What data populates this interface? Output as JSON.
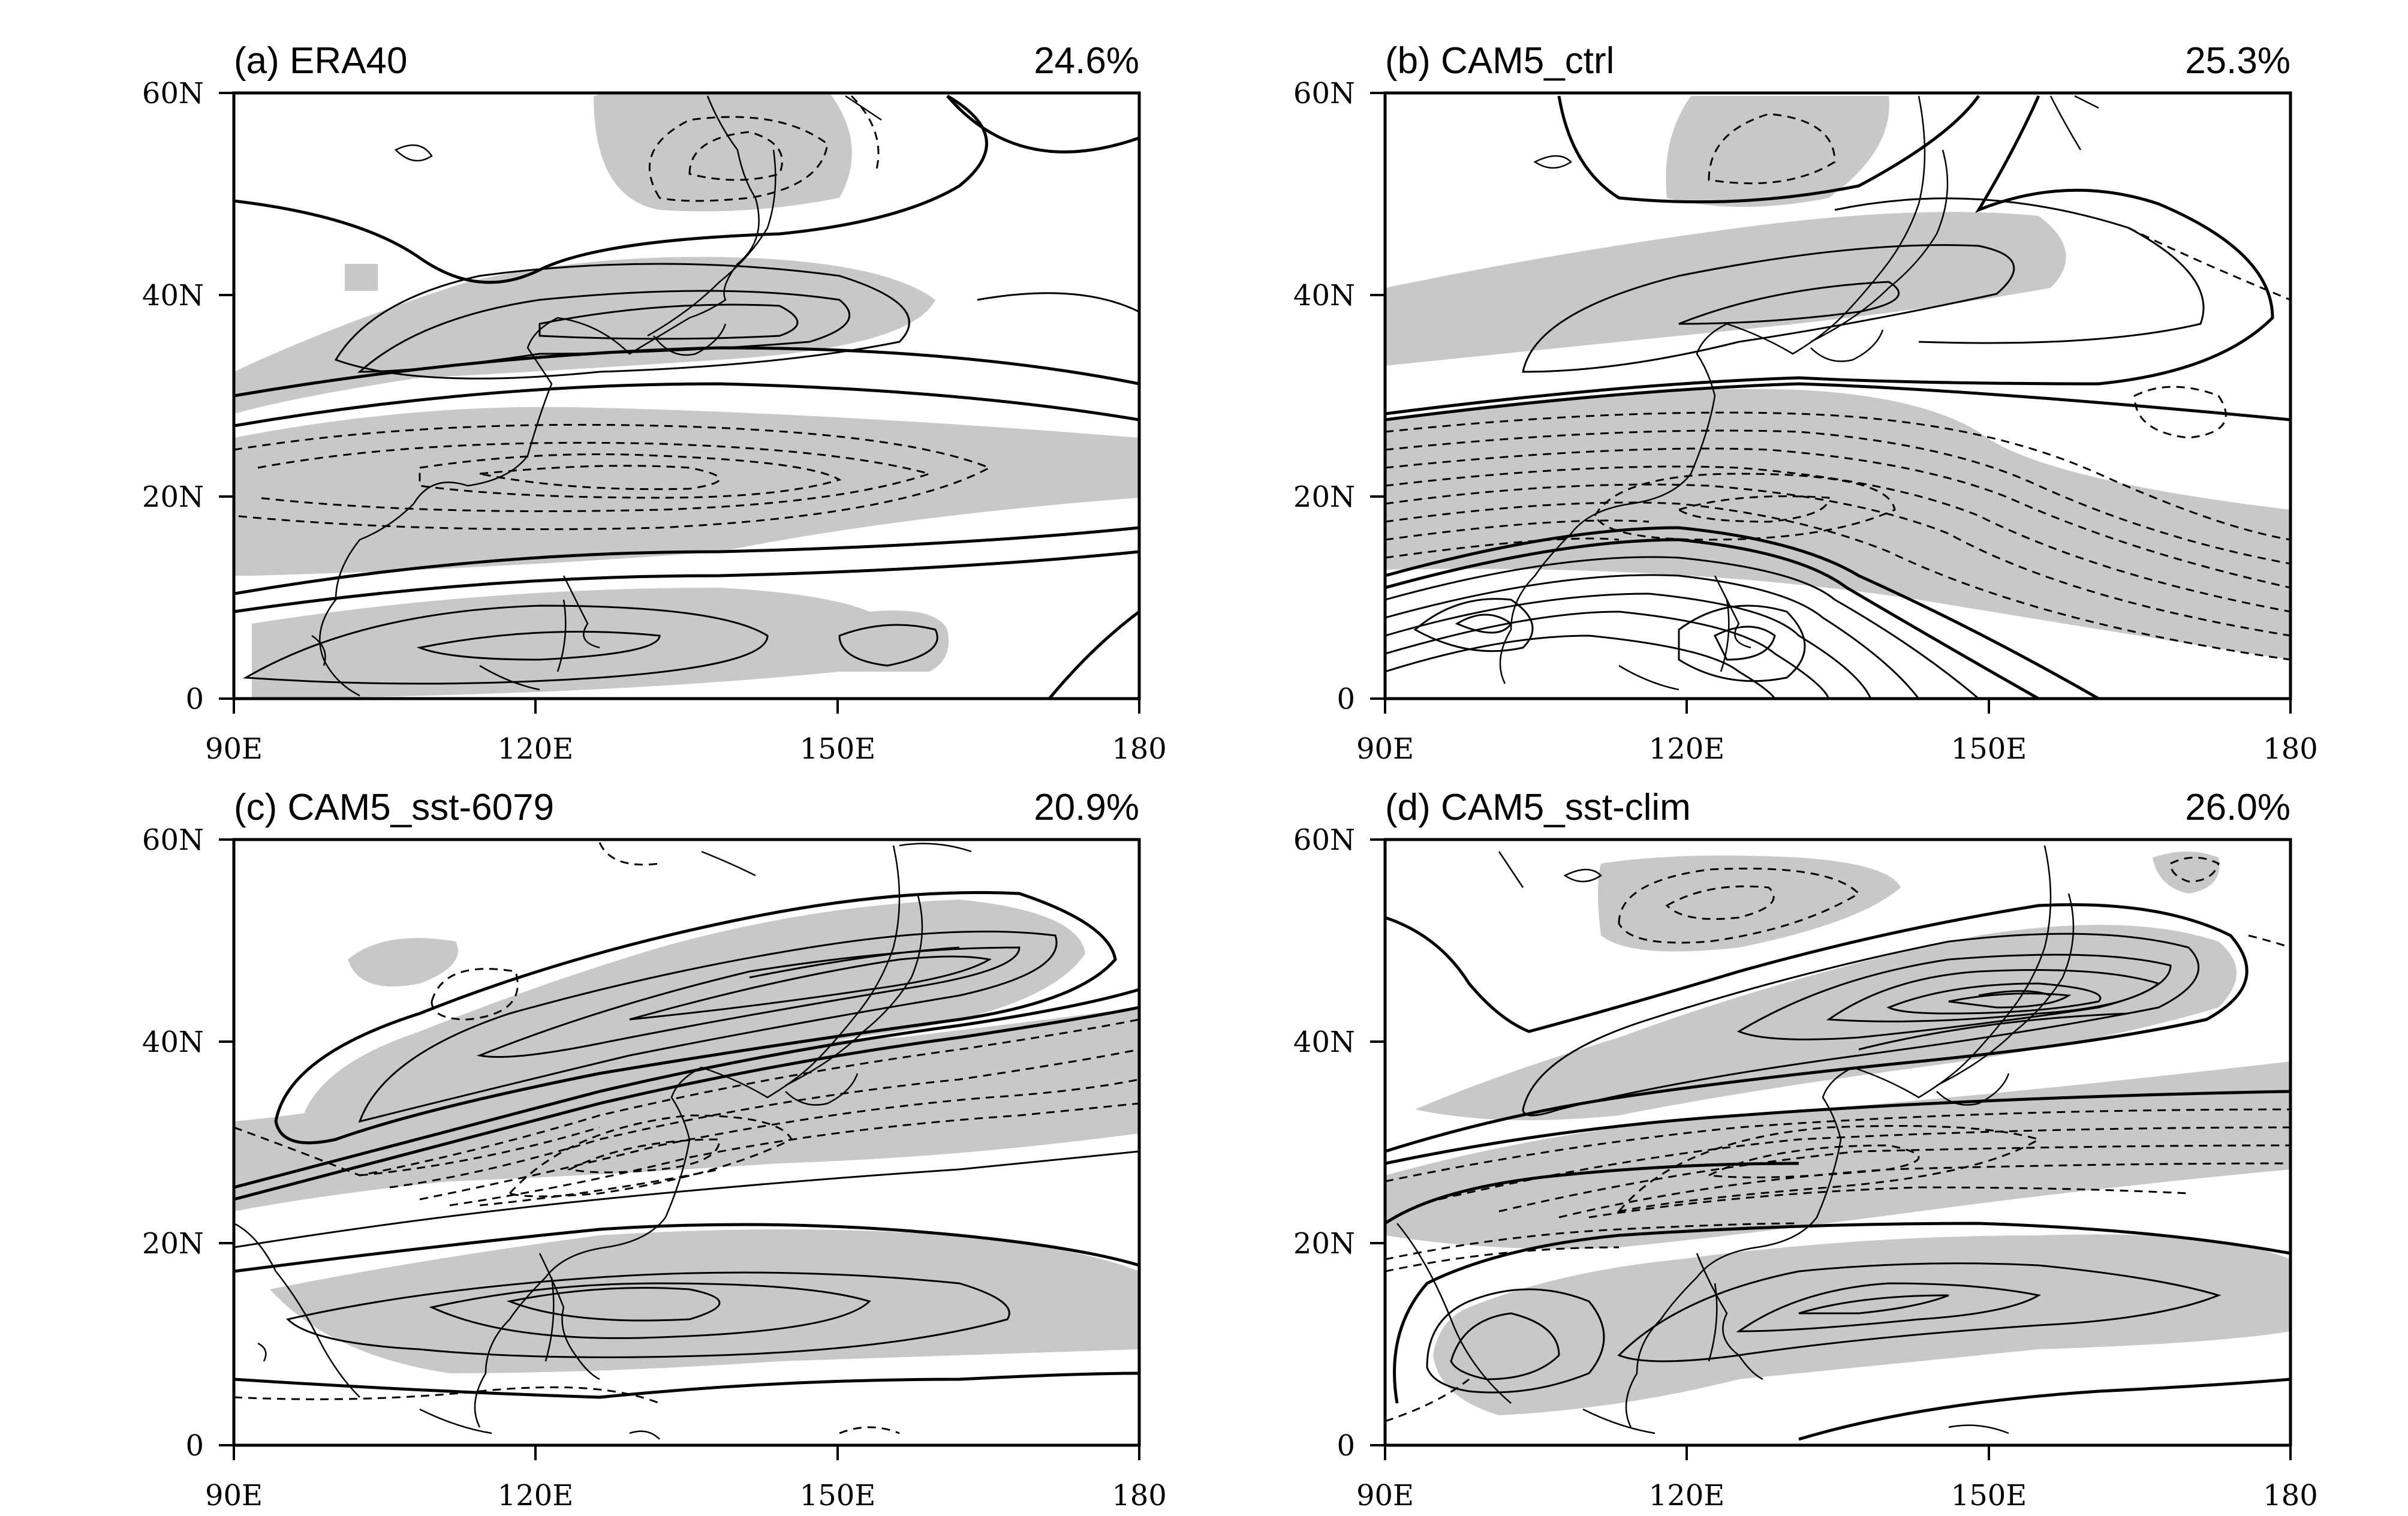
{
  "figure": {
    "x_ticks": [
      "90E",
      "120E",
      "150E",
      "180"
    ],
    "y_ticks": [
      "0",
      "20N",
      "40N",
      "60N"
    ],
    "colors": {
      "shading": "#c8c8c8",
      "contour": "#000000",
      "frame": "#000000"
    },
    "panels": [
      {
        "id": "a",
        "title": "(a)  ERA40",
        "percent": "24.6%"
      },
      {
        "id": "b",
        "title": "(b)  CAM5_ctrl",
        "percent": "25.3%"
      },
      {
        "id": "c",
        "title": "(c)  CAM5_sst-6079",
        "percent": "20.9%"
      },
      {
        "id": "d",
        "title": "(d)  CAM5_sst-clim",
        "percent": "26.0%"
      }
    ]
  }
}
